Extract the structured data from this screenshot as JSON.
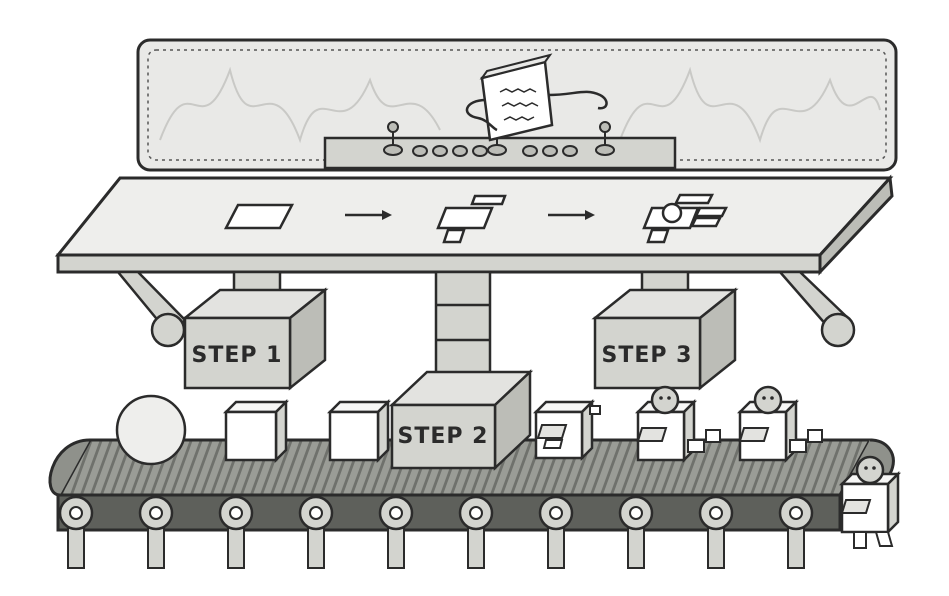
{
  "stations": [
    {
      "label": "STEP 1"
    },
    {
      "label": "STEP 2"
    },
    {
      "label": "STEP 3"
    }
  ],
  "colors": {
    "stroke": "#2b2b2b",
    "panel": "#e9e9e7",
    "box": "#d3d4cf",
    "box_side": "#bcbdb7",
    "belt": "#8f918b",
    "belt_dark": "#5e605b",
    "white": "#ffffff"
  },
  "icons": {
    "controller": "robot-controller-icon",
    "parts": [
      "square-part-icon",
      "partial-robot-icon",
      "complete-robot-icon"
    ]
  }
}
